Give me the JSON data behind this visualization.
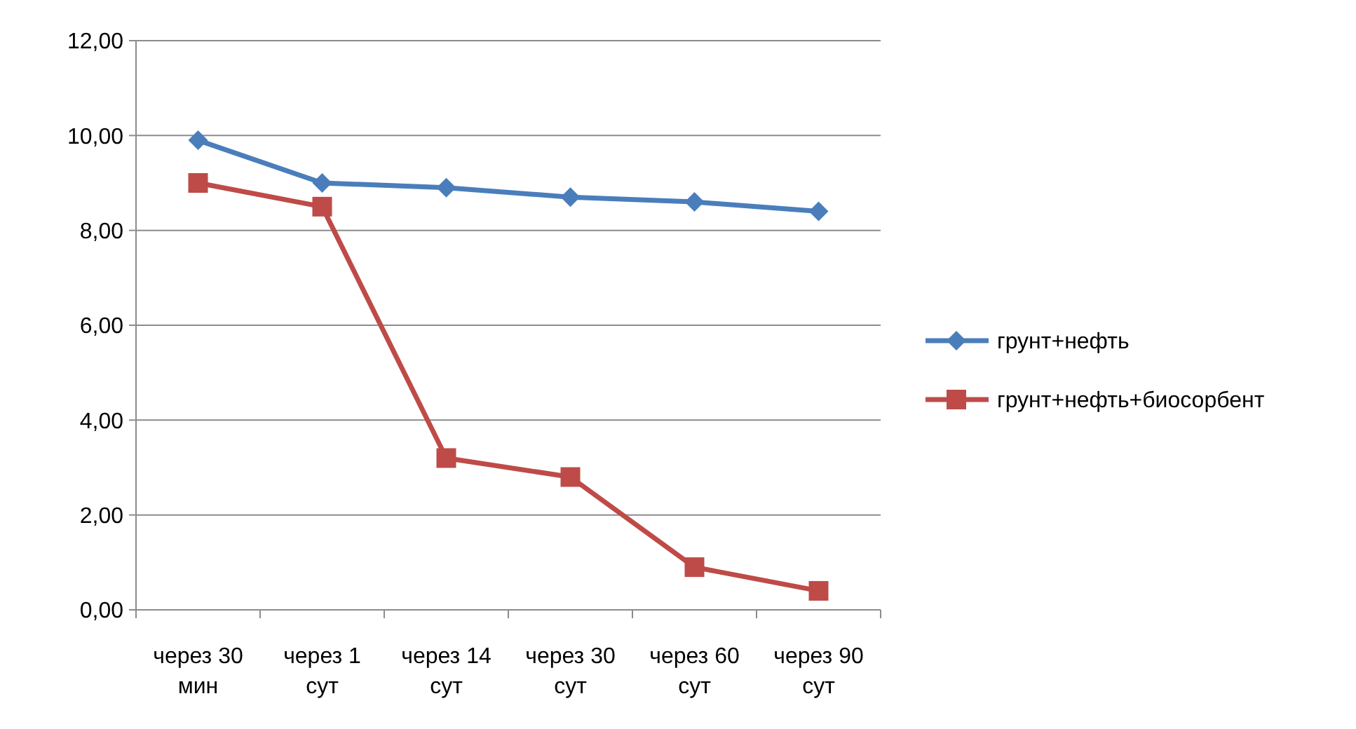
{
  "chart_data": {
    "type": "line",
    "categories": [
      "через 30 мин",
      "через 1 сут",
      "через 14 сут",
      "через 30 сут",
      "через 60 сут",
      "через 90 сут"
    ],
    "series": [
      {
        "name": "грунт+нефть",
        "color": "#4a7ebb",
        "marker": "diamond",
        "values": [
          9.9,
          9.0,
          8.9,
          8.7,
          8.6,
          8.4
        ]
      },
      {
        "name": "грунт+нефть+биосорбент",
        "color": "#be4b48",
        "marker": "square",
        "values": [
          9.0,
          8.5,
          3.2,
          2.8,
          0.9,
          0.4
        ]
      }
    ],
    "ylim": [
      0,
      12
    ],
    "yticks": [
      {
        "value": 0,
        "label": "0,00"
      },
      {
        "value": 2,
        "label": "2,00"
      },
      {
        "value": 4,
        "label": "4,00"
      },
      {
        "value": 6,
        "label": "6,00"
      },
      {
        "value": 8,
        "label": "8,00"
      },
      {
        "value": 10,
        "label": "10,00"
      },
      {
        "value": 12,
        "label": "12,00"
      }
    ],
    "grid": "y",
    "legend": "right"
  }
}
